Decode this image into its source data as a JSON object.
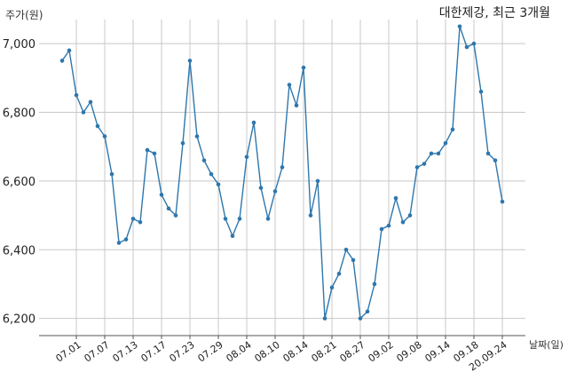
{
  "chart_data": {
    "type": "line",
    "title": "대한제강, 최근 3개월",
    "ylabel": "주가(원)",
    "xlabel": "날짜(일)",
    "ylim": [
      6150,
      7070
    ],
    "yticks": [
      6200,
      6400,
      6600,
      6800,
      7000
    ],
    "ytick_labels": [
      "6,200",
      "6,400",
      "6,600",
      "6,800",
      "7,000"
    ],
    "xtick_labels": [
      "07.01",
      "07.07",
      "07.13",
      "07.17",
      "07.23",
      "07.29",
      "08.04",
      "08.10",
      "08.14",
      "08.21",
      "08.27",
      "09.02",
      "09.08",
      "09.14",
      "09.18",
      "20.09.24"
    ],
    "xtick_index": [
      2,
      6,
      10,
      14,
      18,
      22,
      26,
      30,
      34,
      38,
      42,
      46,
      50,
      54,
      58,
      62
    ],
    "grid": true,
    "series": [
      {
        "color": "#2e77ad",
        "values": [
          6950,
          6980,
          6850,
          6800,
          6830,
          6760,
          6730,
          6620,
          6420,
          6430,
          6490,
          6480,
          6690,
          6680,
          6560,
          6520,
          6500,
          6710,
          6950,
          6730,
          6660,
          6620,
          6590,
          6490,
          6440,
          6490,
          6670,
          6770,
          6580,
          6490,
          6570,
          6640,
          6880,
          6820,
          6930,
          6500,
          6600,
          6200,
          6290,
          6330,
          6400,
          6370,
          6200,
          6220,
          6300,
          6460,
          6470,
          6550,
          6480,
          6500,
          6640,
          6650,
          6680,
          6680,
          6710,
          6750,
          7050,
          6990,
          7000,
          6860,
          6680,
          6660,
          6540
        ]
      }
    ]
  }
}
